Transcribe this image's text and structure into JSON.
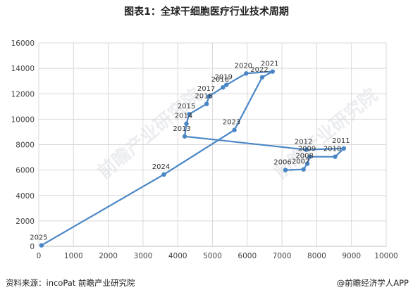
{
  "header": {
    "title": "图表1：全球干细胞医疗行业技术周期"
  },
  "footer": {
    "source": "资料来源：incoPat 前瞻产业研究院",
    "brand": "@前瞻经济学人APP"
  },
  "watermark": {
    "text": "前瞻产业研究院"
  },
  "colors": {
    "line": "#4a86c6",
    "grid": "#d9d9d9",
    "axis": "#bfbfbf",
    "text": "#444444"
  },
  "chart_data": {
    "type": "line",
    "title": "",
    "xlabel": "",
    "ylabel": "",
    "xlim": [
      0,
      10000
    ],
    "ylim": [
      0,
      16000
    ],
    "xticks": [
      0,
      1000,
      2000,
      3000,
      4000,
      5000,
      6000,
      7000,
      8000,
      9000,
      10000
    ],
    "yticks": [
      0,
      2000,
      4000,
      6000,
      8000,
      10000,
      12000,
      14000,
      16000
    ],
    "grid": true,
    "points": [
      {
        "label": "2006",
        "x": 7100,
        "y": 6000
      },
      {
        "label": "2007",
        "x": 7620,
        "y": 6050
      },
      {
        "label": "2008",
        "x": 7730,
        "y": 6500
      },
      {
        "label": "2009",
        "x": 7800,
        "y": 7050
      },
      {
        "label": "2010",
        "x": 8530,
        "y": 7050
      },
      {
        "label": "2011",
        "x": 8780,
        "y": 7700
      },
      {
        "label": "2012",
        "x": 7700,
        "y": 7600
      },
      {
        "label": "2013",
        "x": 4200,
        "y": 8650
      },
      {
        "label": "2014",
        "x": 4250,
        "y": 9650
      },
      {
        "label": "2015",
        "x": 4330,
        "y": 10400
      },
      {
        "label": "2016",
        "x": 4830,
        "y": 11200
      },
      {
        "label": "2017",
        "x": 4900,
        "y": 11800
      },
      {
        "label": "2018",
        "x": 5300,
        "y": 12500
      },
      {
        "label": "2019",
        "x": 5400,
        "y": 12700
      },
      {
        "label": "2020",
        "x": 5970,
        "y": 13600
      },
      {
        "label": "2021",
        "x": 6730,
        "y": 13750
      },
      {
        "label": "2022",
        "x": 6430,
        "y": 13300
      },
      {
        "label": "2023",
        "x": 5630,
        "y": 9150
      },
      {
        "label": "2024",
        "x": 3600,
        "y": 5650
      },
      {
        "label": "2025",
        "x": 80,
        "y": 80
      }
    ]
  }
}
